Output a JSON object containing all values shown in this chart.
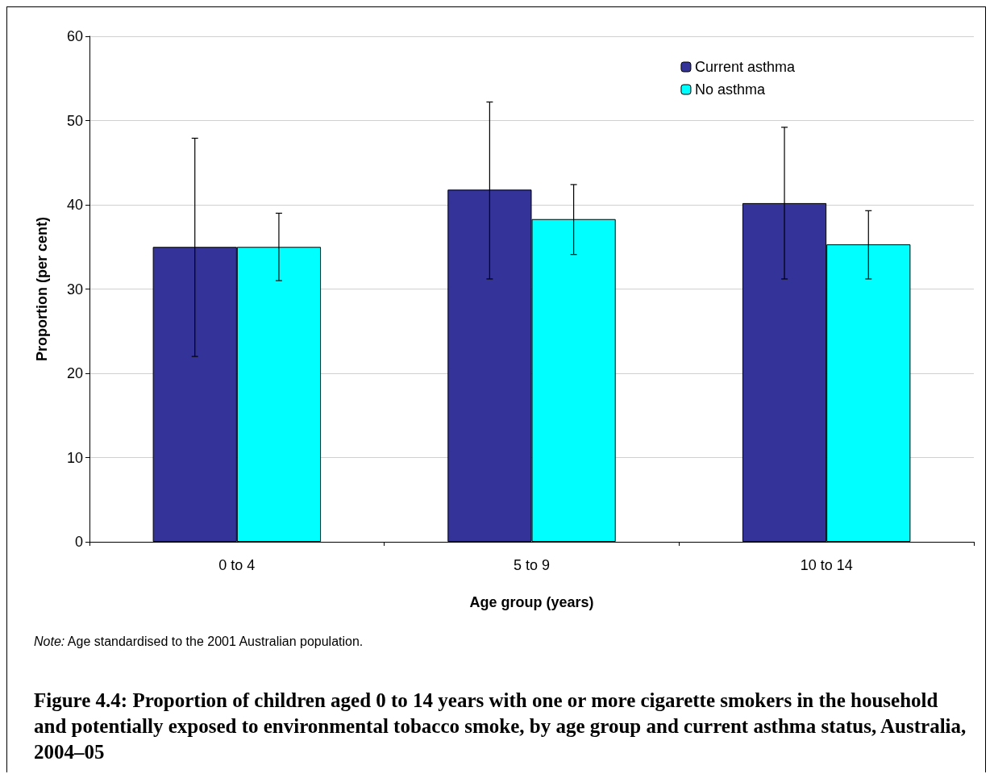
{
  "chart_data": {
    "type": "bar",
    "title": "Figure 4.4: Proportion of children aged 0 to 14 years with one or more cigarette smokers in the household and potentially exposed to environmental tobacco smoke, by age group and current asthma status, Australia, 2004–05",
    "xlabel": "Age group (years)",
    "ylabel": "Proportion (per cent)",
    "annotations": [
      "Note: Age standardised to the 2001 Australian population."
    ],
    "categories": [
      "0 to 4",
      "5 to 9",
      "10 to 14"
    ],
    "series": [
      {
        "name": "Current asthma",
        "color": "#333399",
        "values": [
          35.0,
          41.8,
          40.2
        ],
        "errors": [
          [
            22.0,
            47.9
          ],
          [
            31.2,
            52.2
          ],
          [
            31.2,
            49.2
          ]
        ]
      },
      {
        "name": "No asthma",
        "color": "#00ffff",
        "values": [
          35.0,
          38.3,
          35.3
        ],
        "errors": [
          [
            31.0,
            39.0
          ],
          [
            34.1,
            42.4
          ],
          [
            31.2,
            39.3
          ]
        ]
      }
    ],
    "ylim": [
      0,
      60
    ],
    "yticks": [
      0,
      10,
      20,
      30,
      40,
      50,
      60
    ],
    "grid": "y",
    "legend": "top right"
  }
}
